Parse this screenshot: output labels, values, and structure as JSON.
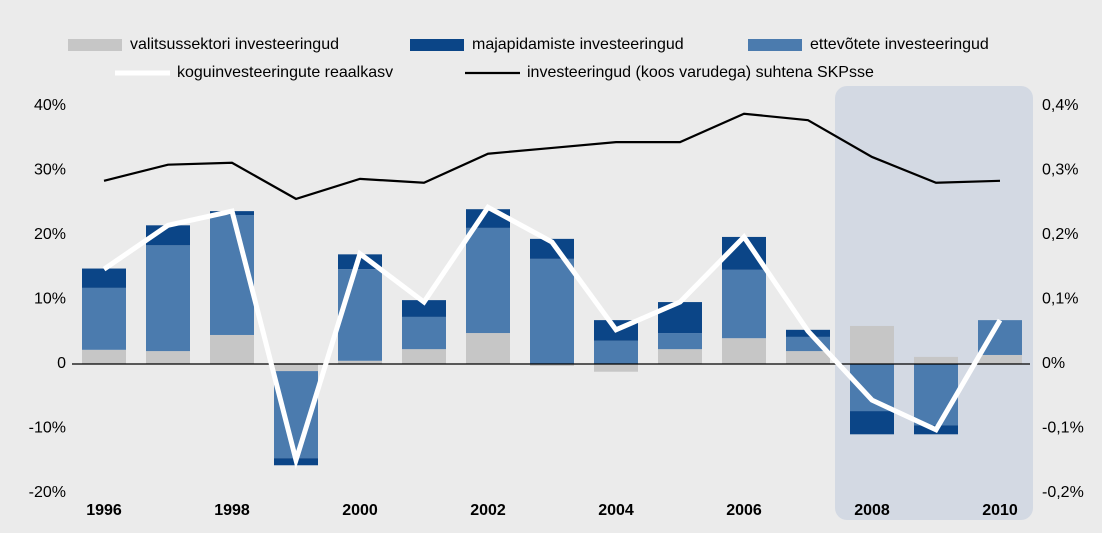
{
  "chart_data": {
    "type": "bar",
    "categories": [
      "1996",
      null,
      "1998",
      null,
      "2000",
      null,
      "2002",
      null,
      "2004",
      null,
      "2006",
      null,
      "2008",
      null,
      "2010"
    ],
    "stacked": true,
    "series": [
      {
        "name": "valitsussektori investeeringud",
        "color": "#c6c6c6",
        "values": [
          2.2,
          2.0,
          4.5,
          -1.1,
          0.5,
          2.3,
          4.8,
          -0.3,
          -1.2,
          2.3,
          4.0,
          2.0,
          5.9,
          1.1,
          1.4
        ]
      },
      {
        "name": "ettevõtete investeeringud",
        "color": "#4b7bae",
        "values": [
          9.6,
          16.4,
          18.6,
          -13.5,
          14.2,
          5.0,
          16.3,
          16.3,
          3.6,
          2.5,
          10.6,
          2.2,
          -7.3,
          -9.5,
          5.4
        ]
      },
      {
        "name": "majapidamiste investeeringud",
        "color": "#0b4587",
        "values": [
          3.0,
          3.1,
          0.6,
          -1.1,
          2.3,
          2.6,
          2.9,
          3.1,
          3.2,
          4.8,
          5.1,
          1.1,
          -3.6,
          -1.4,
          0
        ]
      },
      {
        "name": "koguinvesteeringute reaalkasv",
        "type": "line",
        "color": "#ffffff",
        "values": [
          14.7,
          21.5,
          23.7,
          -14.9,
          17.1,
          9.6,
          24.3,
          18.9,
          5.3,
          9.6,
          19.7,
          5.1,
          -5.6,
          -10.2,
          6.8
        ]
      },
      {
        "name": "investeeringud (koos varudega) suhtena SKPsse",
        "type": "line",
        "axis": "y2",
        "color": "#000000",
        "values": [
          0.284,
          0.309,
          0.312,
          0.256,
          0.287,
          0.281,
          0.326,
          0.335,
          0.344,
          0.344,
          0.388,
          0.378,
          0.321,
          0.281,
          0.284
        ]
      }
    ],
    "ylim": [
      -20,
      40
    ],
    "yticks": [
      {
        "value": -20,
        "label": "-20%"
      },
      {
        "value": -10,
        "label": "-10%"
      },
      0,
      {
        "value": 10,
        "label": "10%"
      },
      {
        "value": 20,
        "label": "20%"
      },
      {
        "value": 30,
        "label": "30%"
      },
      {
        "value": 40,
        "label": "40%"
      }
    ],
    "y2lim": [
      -0.2,
      0.4
    ],
    "y2ticks": [
      {
        "value": -0.2,
        "label": "-0,2%"
      },
      {
        "value": -0.1,
        "label": "-0,1%"
      },
      {
        "value": 0,
        "label": "0%"
      },
      {
        "value": 0.1,
        "label": "0,1%"
      },
      {
        "value": 0.2,
        "label": "0,2%"
      },
      {
        "value": 0.3,
        "label": "0,3%"
      },
      {
        "value": 0.4,
        "label": "0,4%"
      }
    ]
  }
}
